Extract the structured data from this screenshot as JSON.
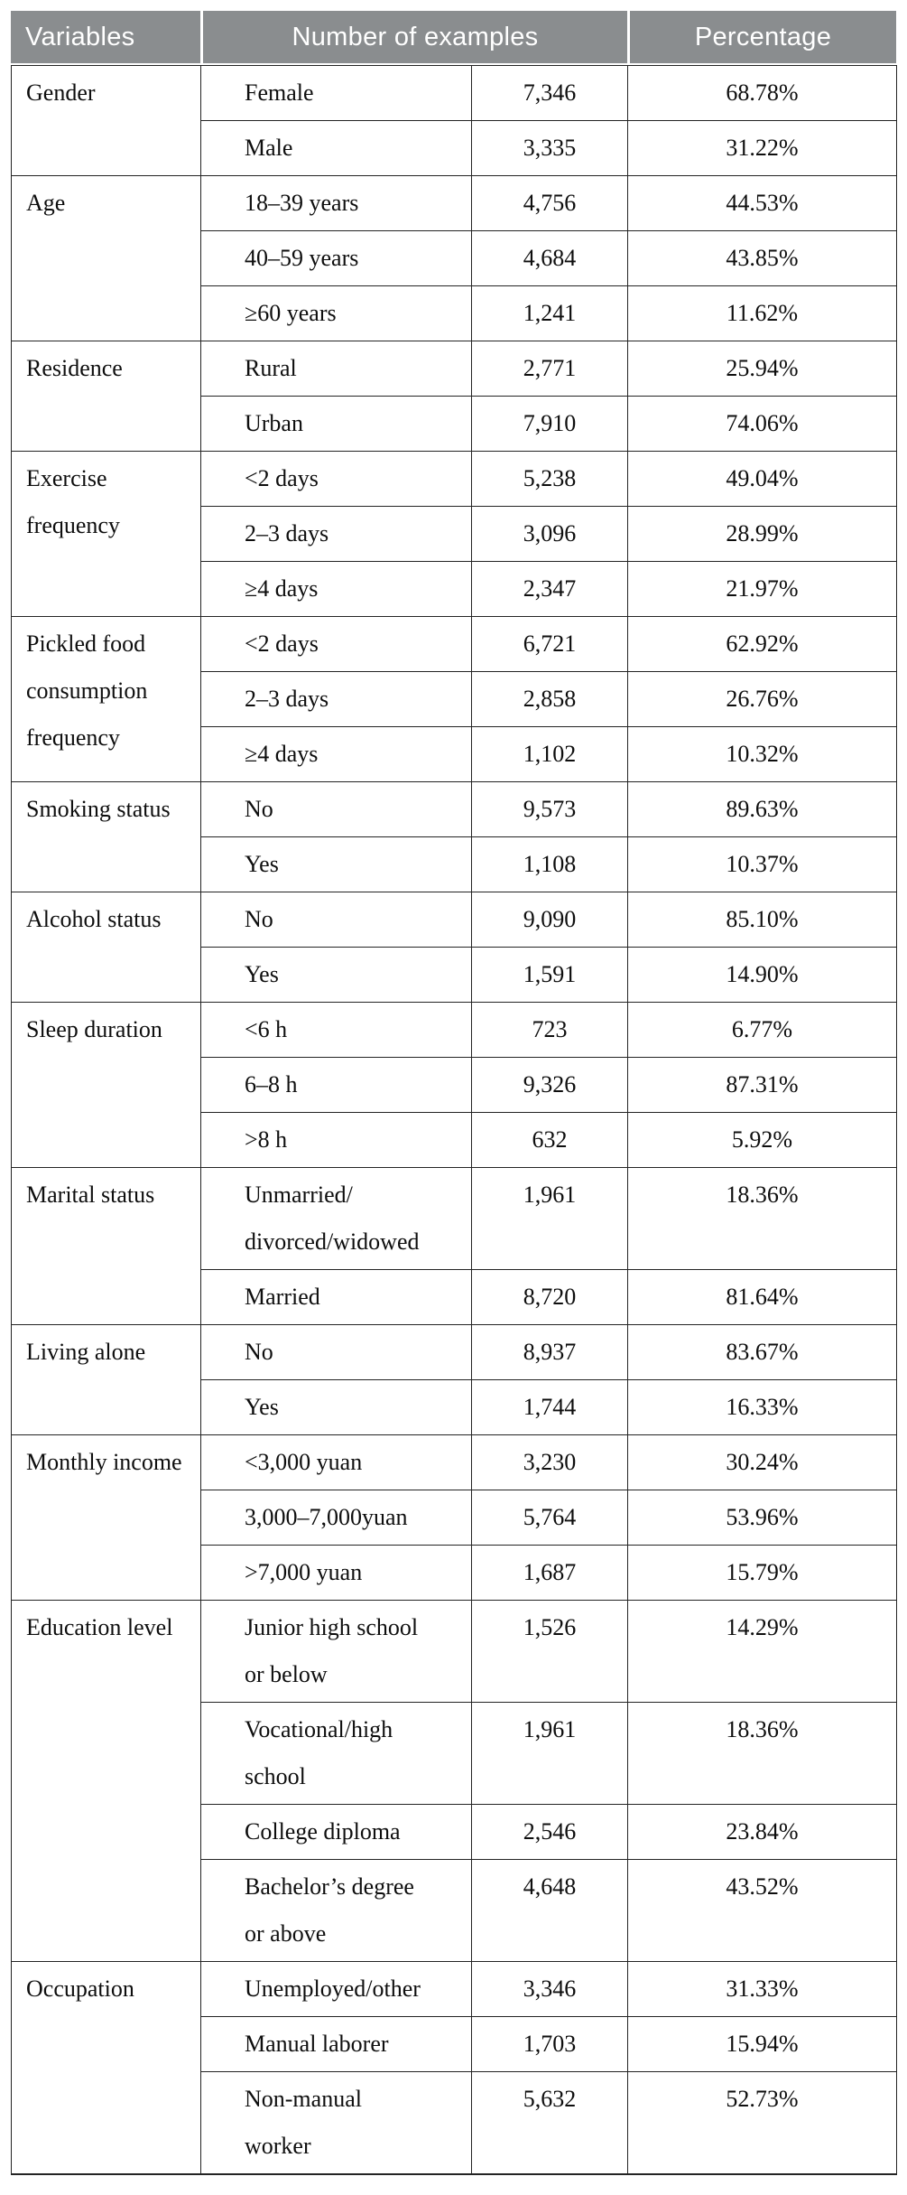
{
  "header": {
    "variables": "Variables",
    "number_of_examples": "Number of examples",
    "percentage": "Percentage"
  },
  "colors": {
    "page_bg": "#ffffff",
    "header_bg": "#8a8d8f",
    "header_text": "#ffffff",
    "border": "#242424",
    "body_text": "#0e0e0e"
  },
  "groups": [
    {
      "variable": "Gender",
      "rows": [
        {
          "category": "Female",
          "count": "7,346",
          "percentage": "68.78%"
        },
        {
          "category": "Male",
          "count": "3,335",
          "percentage": "31.22%"
        }
      ]
    },
    {
      "variable": "Age",
      "rows": [
        {
          "category": "18–39 years",
          "count": "4,756",
          "percentage": "44.53%"
        },
        {
          "category": "40–59 years",
          "count": "4,684",
          "percentage": "43.85%"
        },
        {
          "category": "≥60 years",
          "count": "1,241",
          "percentage": "11.62%"
        }
      ]
    },
    {
      "variable": "Residence",
      "rows": [
        {
          "category": "Rural",
          "count": "2,771",
          "percentage": "25.94%"
        },
        {
          "category": "Urban",
          "count": "7,910",
          "percentage": "74.06%"
        }
      ]
    },
    {
      "variable": "Exercise frequency",
      "rows": [
        {
          "category": "<2 days",
          "count": "5,238",
          "percentage": "49.04%"
        },
        {
          "category": "2–3 days",
          "count": "3,096",
          "percentage": "28.99%"
        },
        {
          "category": "≥4 days",
          "count": "2,347",
          "percentage": "21.97%"
        }
      ]
    },
    {
      "variable": "Pickled food consumption frequency",
      "rows": [
        {
          "category": "<2 days",
          "count": "6,721",
          "percentage": "62.92%"
        },
        {
          "category": "2–3 days",
          "count": "2,858",
          "percentage": "26.76%"
        },
        {
          "category": "≥4 days",
          "count": "1,102",
          "percentage": "10.32%"
        }
      ]
    },
    {
      "variable": "Smoking status",
      "rows": [
        {
          "category": "No",
          "count": "9,573",
          "percentage": "89.63%"
        },
        {
          "category": "Yes",
          "count": "1,108",
          "percentage": "10.37%"
        }
      ]
    },
    {
      "variable": "Alcohol status",
      "rows": [
        {
          "category": "No",
          "count": "9,090",
          "percentage": "85.10%"
        },
        {
          "category": "Yes",
          "count": "1,591",
          "percentage": "14.90%"
        }
      ]
    },
    {
      "variable": "Sleep duration",
      "rows": [
        {
          "category": "<6 h",
          "count": "723",
          "percentage": "6.77%"
        },
        {
          "category": "6–8 h",
          "count": "9,326",
          "percentage": "87.31%"
        },
        {
          "category": ">8 h",
          "count": "632",
          "percentage": "5.92%"
        }
      ]
    },
    {
      "variable": "Marital status",
      "rows": [
        {
          "category": "Unmarried/\ndivorced/widowed",
          "count": "1,961",
          "percentage": "18.36%"
        },
        {
          "category": "Married",
          "count": "8,720",
          "percentage": "81.64%"
        }
      ]
    },
    {
      "variable": "Living alone",
      "rows": [
        {
          "category": "No",
          "count": "8,937",
          "percentage": "83.67%"
        },
        {
          "category": "Yes",
          "count": "1,744",
          "percentage": "16.33%"
        }
      ]
    },
    {
      "variable": "Monthly income",
      "rows": [
        {
          "category": "<3,000 yuan",
          "count": "3,230",
          "percentage": "30.24%"
        },
        {
          "category": "3,000–7,000yuan",
          "count": "5,764",
          "percentage": "53.96%"
        },
        {
          "category": ">7,000 yuan",
          "count": "1,687",
          "percentage": "15.79%"
        }
      ]
    },
    {
      "variable": "Education level",
      "rows": [
        {
          "category": "Junior high school\nor below",
          "count": "1,526",
          "percentage": "14.29%"
        },
        {
          "category": "Vocational/high\nschool",
          "count": "1,961",
          "percentage": "18.36%"
        },
        {
          "category": "College diploma",
          "count": "2,546",
          "percentage": "23.84%"
        },
        {
          "category": "Bachelor’s degree\nor above",
          "count": "4,648",
          "percentage": "43.52%"
        }
      ]
    },
    {
      "variable": "Occupation",
      "rows": [
        {
          "category": "Unemployed/other",
          "count": "3,346",
          "percentage": "31.33%"
        },
        {
          "category": "Manual laborer",
          "count": "1,703",
          "percentage": "15.94%"
        },
        {
          "category": "Non-manual\nworker",
          "count": "5,632",
          "percentage": "52.73%"
        }
      ]
    }
  ]
}
